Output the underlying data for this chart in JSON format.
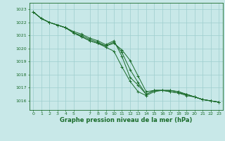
{
  "title": "Graphe pression niveau de la mer (hPa)",
  "background_color": "#c8e8e8",
  "grid_color": "#9ecece",
  "line_color": "#1a6b2a",
  "xlim": [
    -0.5,
    23.5
  ],
  "ylim": [
    1015.3,
    1023.5
  ],
  "yticks": [
    1016,
    1017,
    1018,
    1019,
    1020,
    1021,
    1022,
    1023
  ],
  "xticks": [
    0,
    1,
    2,
    3,
    4,
    5,
    7,
    8,
    9,
    10,
    11,
    12,
    13,
    14,
    15,
    16,
    17,
    18,
    19,
    20,
    21,
    22,
    23
  ],
  "series": [
    [
      1022.8,
      1022.3,
      1022.0,
      1021.8,
      1021.6,
      1021.2,
      1020.9,
      1020.6,
      1020.4,
      1020.1,
      1019.8,
      1018.6,
      1017.5,
      1016.7,
      1016.4,
      1016.7,
      1016.8,
      1016.7,
      1016.6,
      1016.4,
      1016.3,
      1016.1,
      1016.0,
      1015.9
    ],
    [
      1022.8,
      1022.3,
      1022.0,
      1021.8,
      1021.6,
      1021.2,
      1020.9,
      1020.6,
      1020.4,
      1020.2,
      1020.4,
      1019.9,
      1019.1,
      1017.9,
      1016.7,
      1016.8,
      1016.8,
      1016.8,
      1016.7,
      1016.5,
      1016.3,
      1016.1,
      1016.0,
      1015.9
    ],
    [
      1022.8,
      1022.3,
      1022.0,
      1021.8,
      1021.6,
      1021.2,
      1021.0,
      1020.7,
      1020.5,
      1020.2,
      1020.5,
      1019.7,
      1018.4,
      1017.4,
      1016.5,
      1016.8,
      1016.8,
      1016.8,
      1016.7,
      1016.5,
      1016.3,
      1016.1,
      1016.0,
      1015.9
    ],
    [
      1022.8,
      1022.3,
      1022.0,
      1021.8,
      1021.6,
      1021.3,
      1021.1,
      1020.8,
      1020.6,
      1020.3,
      1020.6,
      1019.4,
      1017.8,
      1017.2,
      1016.5,
      1016.8,
      1016.8,
      1016.7,
      1016.6,
      1016.5,
      1016.3,
      1016.1,
      1016.0,
      1015.9
    ]
  ]
}
